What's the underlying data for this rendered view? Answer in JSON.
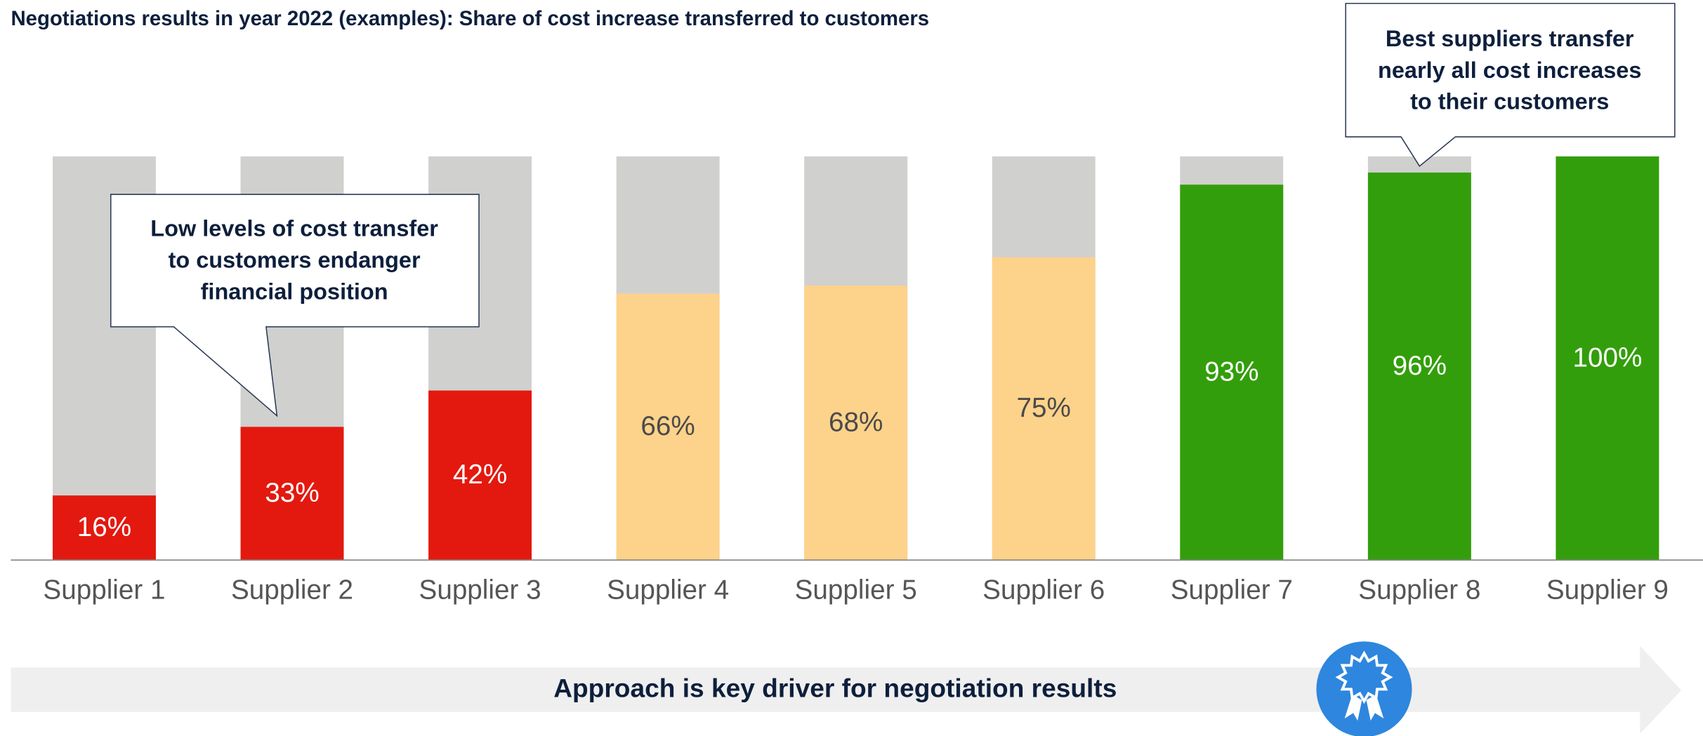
{
  "chart_data": {
    "type": "bar",
    "title": "Negotiations results in year 2022 (examples): Share of cost increase transferred to customers",
    "categories": [
      "Supplier 1",
      "Supplier 2",
      "Supplier 3",
      "Supplier 4",
      "Supplier 5",
      "Supplier 6",
      "Supplier 7",
      "Supplier 8",
      "Supplier 9"
    ],
    "values": [
      16,
      33,
      42,
      66,
      68,
      75,
      93,
      96,
      100
    ],
    "value_labels": [
      "16%",
      "33%",
      "42%",
      "66%",
      "68%",
      "75%",
      "93%",
      "96%",
      "100%"
    ],
    "colors": [
      "#e3190f",
      "#e3190f",
      "#e3190f",
      "#fdd28a",
      "#fdd28a",
      "#fdd28a",
      "#339e0b",
      "#339e0b",
      "#339e0b"
    ],
    "value_label_colors": [
      "#ffffff",
      "#ffffff",
      "#ffffff",
      "#4a4a4a",
      "#4a4a4a",
      "#4a4a4a",
      "#ffffff",
      "#ffffff",
      "#ffffff"
    ],
    "remainder_color": "#d0d0ce",
    "ylim": [
      0,
      100
    ],
    "annotations": [
      [
        "Low levels of cost transfer",
        "to customers endanger",
        "financial position"
      ],
      [
        "Best suppliers transfer",
        "nearly all cost increases",
        "to their customers"
      ]
    ],
    "footer": "Approach is key driver for negotiation results"
  }
}
